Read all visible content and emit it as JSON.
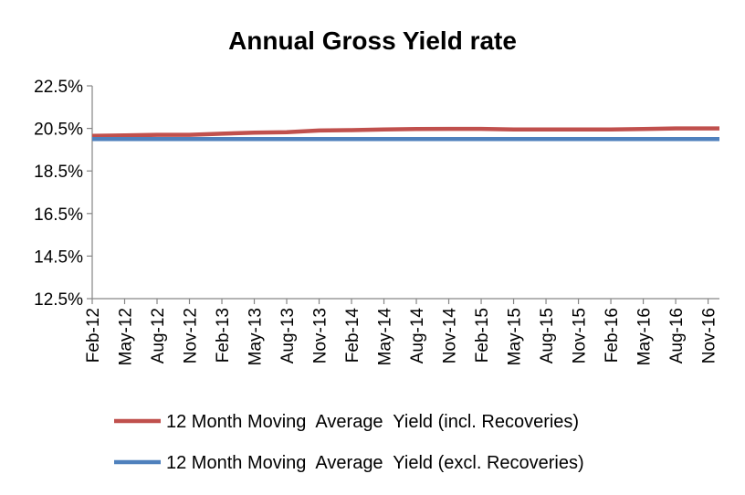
{
  "chart_data": {
    "type": "line",
    "title": "Annual Gross Yield rate",
    "xlabel": "",
    "ylabel": "",
    "categories": [
      "Feb-12",
      "May-12",
      "Aug-12",
      "Nov-12",
      "Feb-13",
      "May-13",
      "Aug-13",
      "Nov-13",
      "Feb-14",
      "May-14",
      "Aug-14",
      "Nov-14",
      "Feb-15",
      "May-15",
      "Aug-15",
      "Nov-15",
      "Feb-16",
      "May-16",
      "Aug-16",
      "Nov-16"
    ],
    "yticks": [
      "12.5%",
      "14.5%",
      "16.5%",
      "18.5%",
      "20.5%",
      "22.5%"
    ],
    "ylim": [
      12.5,
      22.5
    ],
    "grid": false,
    "legend_position": "bottom",
    "series": [
      {
        "name": "12 Month Moving  Average  Yield (incl. Recoveries)",
        "color": "#c0504d",
        "values": [
          20.15,
          20.17,
          20.2,
          20.2,
          20.25,
          20.3,
          20.32,
          20.4,
          20.42,
          20.45,
          20.47,
          20.48,
          20.48,
          20.45,
          20.45,
          20.45,
          20.45,
          20.47,
          20.5,
          20.5
        ]
      },
      {
        "name": "12 Month Moving  Average  Yield (excl. Recoveries)",
        "color": "#4f81bd",
        "values": [
          20.0,
          20.0,
          20.0,
          20.0,
          20.0,
          20.0,
          20.0,
          20.0,
          20.0,
          20.0,
          20.0,
          20.0,
          20.0,
          20.0,
          20.0,
          20.0,
          20.0,
          20.0,
          20.0,
          20.0
        ]
      }
    ]
  }
}
